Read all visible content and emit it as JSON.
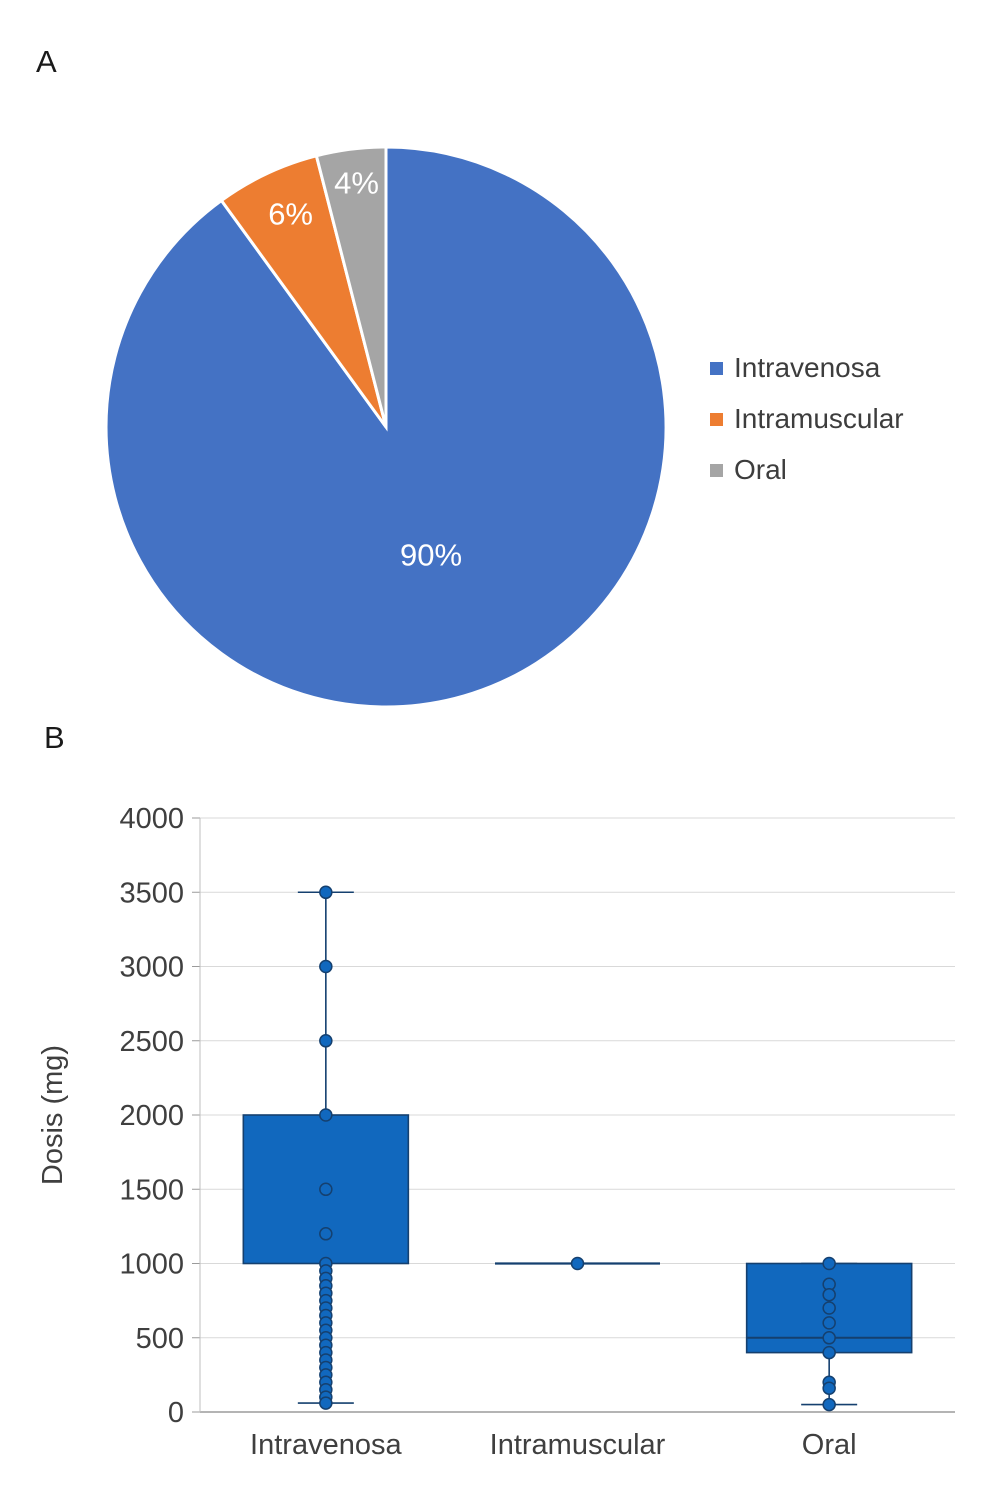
{
  "panels": {
    "a_label": "A",
    "b_label": "B"
  },
  "chart_data": [
    {
      "type": "pie",
      "title": "",
      "labels": [
        "Intravenosa",
        "Intramuscular",
        "Oral"
      ],
      "values": [
        90,
        6,
        4
      ],
      "data_labels": [
        "90%",
        "6%",
        "4%"
      ],
      "colors": [
        "#4472C4",
        "#ED7D31",
        "#A5A5A5"
      ],
      "label_color": "#FFFFFF",
      "legend_position": "right",
      "start_angle_deg": 0,
      "direction": "clockwise"
    },
    {
      "type": "boxplot",
      "ylabel": "Dosis (mg)",
      "ylim": [
        0,
        4000
      ],
      "ytick_step": 500,
      "ytick_labels": [
        "0",
        "500",
        "1000",
        "1500",
        "2000",
        "2500",
        "3000",
        "3500",
        "4000"
      ],
      "grid": true,
      "legend_position": "none",
      "categories": [
        "Intravenosa",
        "Intramuscular",
        "Oral"
      ],
      "box_fill": "#1168BE",
      "box_stroke": "#15406F",
      "series": [
        {
          "category": "Intravenosa",
          "whisker_low": 60,
          "q1": 1000,
          "median": 1000,
          "q3": 2000,
          "whisker_high": 3500,
          "points": [
            3500,
            3000,
            2500,
            2000,
            1500,
            1200,
            1000,
            950,
            900,
            850,
            800,
            750,
            700,
            650,
            600,
            550,
            500,
            450,
            400,
            350,
            300,
            250,
            200,
            150,
            100,
            60
          ]
        },
        {
          "category": "Intramuscular",
          "whisker_low": 1000,
          "q1": 1000,
          "median": 1000,
          "q3": 1000,
          "whisker_high": 1000,
          "points": [
            1000
          ]
        },
        {
          "category": "Oral",
          "whisker_low": 50,
          "q1": 400,
          "median": 500,
          "q3": 1000,
          "whisker_high": 1000,
          "points": [
            1000,
            860,
            790,
            700,
            600,
            500,
            400,
            200,
            160,
            50
          ]
        }
      ]
    }
  ]
}
